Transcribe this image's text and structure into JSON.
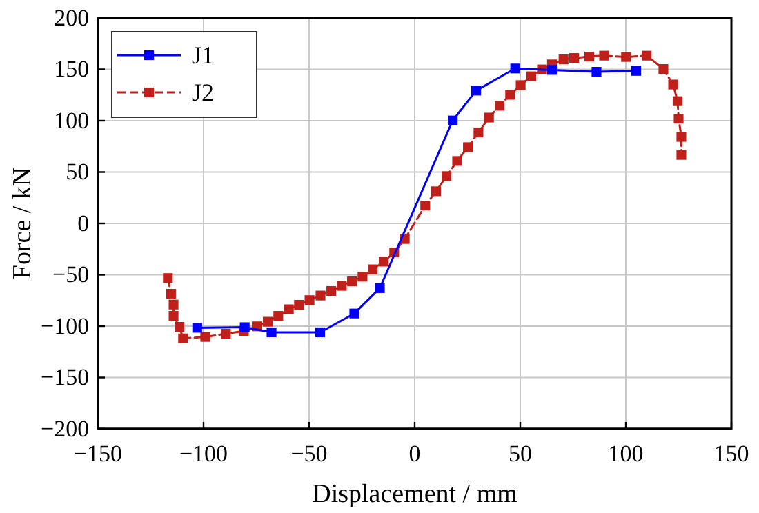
{
  "chart_data": {
    "type": "line",
    "xlabel": "Displacement / mm",
    "ylabel": "Force / kN",
    "xlim": [
      -150,
      150
    ],
    "xticks": [
      -150,
      -100,
      -50,
      0,
      50,
      100,
      150
    ],
    "ylim": [
      -200,
      200
    ],
    "yticks": [
      -200,
      -150,
      -100,
      -50,
      0,
      50,
      100,
      150,
      200
    ],
    "grid": true,
    "legend": "top left",
    "marker": "square",
    "series": [
      {
        "name": "J1",
        "color": "#0000ff",
        "line_style": "solid",
        "x": [
          -103,
          -80.5,
          -67.8,
          -44.8,
          -28.6,
          -16.5,
          18,
          29.1,
          47.6,
          65,
          86.1,
          104.9
        ],
        "values": [
          -101.6,
          -101,
          -106,
          -106,
          -87.7,
          -63,
          100.2,
          129.3,
          150.8,
          149.4,
          147.6,
          148.5
        ]
      },
      {
        "name": "J2",
        "color": "#c0201a",
        "line_style": "dashed",
        "x": [
          -116.9,
          -115.4,
          -114.2,
          -114.2,
          -111.4,
          -109.7,
          -99.2,
          -89.4,
          -80.9,
          -74.8,
          -69.6,
          -64.6,
          -59.6,
          -54.8,
          -49.8,
          -44.6,
          -39.5,
          -34.5,
          -29.7,
          -24.7,
          -19.9,
          -14.7,
          -9.7,
          -4.7,
          5,
          10.1,
          15.1,
          20.1,
          25.2,
          30.2,
          35.2,
          40.2,
          45.2,
          50.2,
          55.2,
          60.3,
          65,
          70.5,
          75.5,
          82.7,
          89.7,
          100.1,
          109.9,
          117.8,
          122.4,
          124.5,
          125,
          126.3,
          126.3
        ],
        "values": [
          -53.2,
          -68.5,
          -79,
          -90,
          -100.7,
          -111.9,
          -110.5,
          -107.4,
          -104.7,
          -100.2,
          -95.7,
          -90,
          -83.6,
          -79.2,
          -74.7,
          -70.2,
          -65.8,
          -60.8,
          -56.4,
          -51.9,
          -44.7,
          -37.2,
          -28.2,
          -15.2,
          17.4,
          31.3,
          46,
          60.8,
          74.2,
          88.6,
          103,
          114.5,
          125.2,
          134.6,
          143.2,
          149.9,
          154.8,
          159.7,
          161,
          162.4,
          163.3,
          162,
          163.3,
          150.3,
          135.2,
          119,
          102,
          84.2,
          66.7
        ]
      }
    ]
  }
}
